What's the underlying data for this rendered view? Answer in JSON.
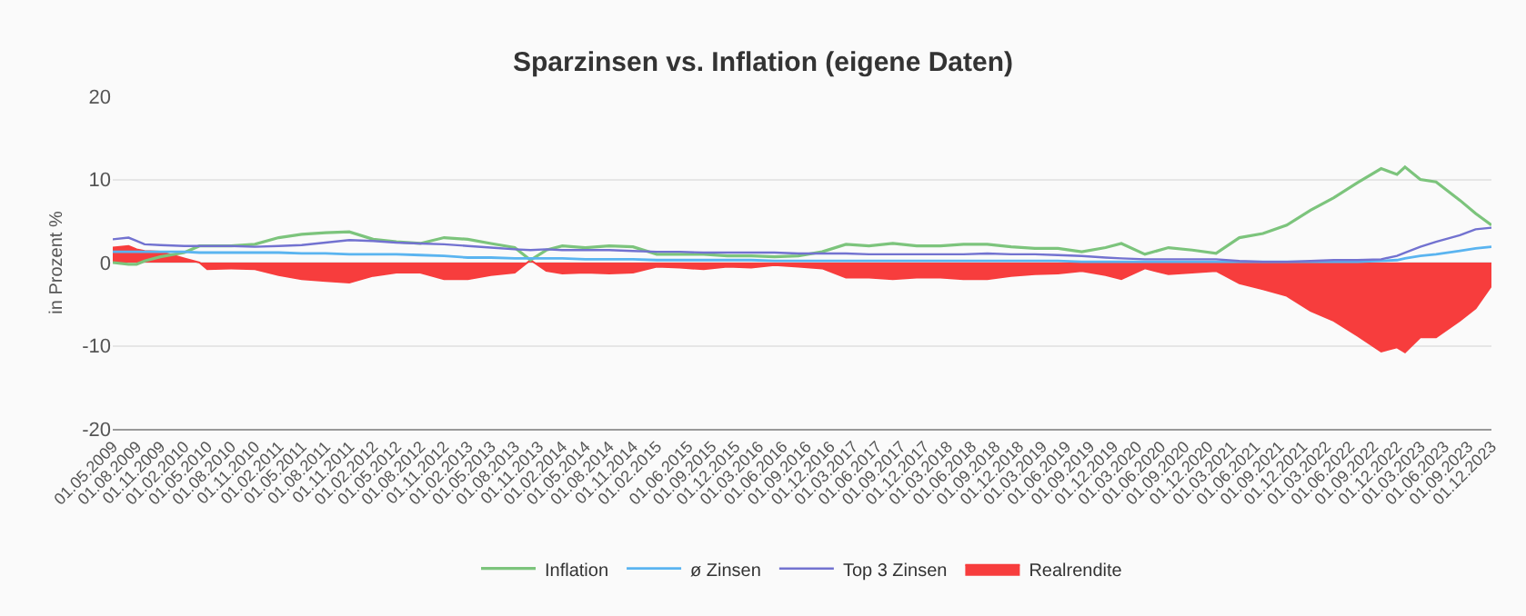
{
  "chart_data": {
    "type": "line",
    "title": "Sparzinsen vs. Inflation (eigene Daten)",
    "ylabel": "in Prozent %",
    "x": [
      "2009-05",
      "2009-07",
      "2009-08",
      "2009-09",
      "2009-11",
      "2010-02",
      "2010-04",
      "2010-05",
      "2010-08",
      "2010-11",
      "2011-02",
      "2011-05",
      "2011-08",
      "2011-11",
      "2012-02",
      "2012-05",
      "2012-08",
      "2012-11",
      "2013-02",
      "2013-05",
      "2013-08",
      "2013-10",
      "2013-12",
      "2014-02",
      "2014-05",
      "2014-08",
      "2014-11",
      "2015-02",
      "2015-05",
      "2015-08",
      "2015-11",
      "2016-02",
      "2016-05",
      "2016-08",
      "2016-11",
      "2017-02",
      "2017-05",
      "2017-08",
      "2017-11",
      "2018-02",
      "2018-05",
      "2018-08",
      "2018-11",
      "2019-02",
      "2019-05",
      "2019-08",
      "2019-11",
      "2020-01",
      "2020-04",
      "2020-07",
      "2020-10",
      "2021-01",
      "2021-04",
      "2021-07",
      "2021-10",
      "2022-01",
      "2022-04",
      "2022-07",
      "2022-10",
      "2022-12",
      "2023-01",
      "2023-03",
      "2023-05",
      "2023-08",
      "2023-10",
      "2023-12"
    ],
    "series": [
      {
        "name": "Inflation",
        "color": "#7cc47c",
        "values": [
          0,
          -0.2,
          -0.2,
          0.2,
          0.7,
          1.2,
          2.0,
          2.0,
          2.0,
          2.2,
          3.0,
          3.4,
          3.6,
          3.7,
          2.8,
          2.5,
          2.3,
          3.0,
          2.8,
          2.3,
          1.8,
          0.3,
          1.5,
          2.0,
          1.8,
          2.0,
          1.9,
          1.0,
          1.0,
          1.0,
          0.8,
          0.8,
          0.7,
          0.8,
          1.3,
          2.2,
          2.0,
          2.3,
          2.0,
          2.0,
          2.2,
          2.2,
          1.9,
          1.7,
          1.7,
          1.3,
          1.8,
          2.3,
          1.0,
          1.8,
          1.5,
          1.1,
          3.0,
          3.5,
          4.5,
          6.3,
          7.8,
          9.6,
          11.3,
          10.6,
          11.5,
          10.0,
          9.7,
          7.5,
          5.9,
          4.5
        ]
      },
      {
        "name": "ø Zinsen",
        "color": "#5ab4f0",
        "values": [
          1.3,
          1.3,
          1.3,
          1.3,
          1.3,
          1.3,
          1.2,
          1.2,
          1.2,
          1.2,
          1.2,
          1.1,
          1.1,
          1.0,
          1.0,
          1.0,
          0.9,
          0.8,
          0.6,
          0.6,
          0.5,
          0.5,
          0.5,
          0.5,
          0.4,
          0.4,
          0.4,
          0.3,
          0.3,
          0.3,
          0.3,
          0.3,
          0.2,
          0.2,
          0.2,
          0.2,
          0.2,
          0.2,
          0.2,
          0.2,
          0.2,
          0.2,
          0.2,
          0.2,
          0.2,
          0.1,
          0.1,
          0.1,
          0.1,
          0.1,
          0.1,
          0.1,
          0.1,
          0.1,
          0.1,
          0.1,
          0.1,
          0.1,
          0.2,
          0.3,
          0.5,
          0.8,
          1.0,
          1.4,
          1.7,
          1.9
        ]
      },
      {
        "name": "Top 3 Zinsen",
        "color": "#7272d0",
        "values": [
          2.8,
          3.0,
          2.6,
          2.2,
          2.1,
          2.0,
          2.0,
          2.0,
          2.0,
          1.9,
          2.0,
          2.1,
          2.4,
          2.7,
          2.6,
          2.4,
          2.3,
          2.2,
          2.0,
          1.8,
          1.6,
          1.5,
          1.6,
          1.5,
          1.5,
          1.5,
          1.4,
          1.3,
          1.3,
          1.2,
          1.2,
          1.2,
          1.2,
          1.1,
          1.1,
          1.1,
          1.0,
          1.0,
          1.0,
          1.0,
          1.0,
          1.1,
          1.0,
          1.0,
          0.9,
          0.8,
          0.6,
          0.5,
          0.4,
          0.4,
          0.4,
          0.4,
          0.2,
          0.1,
          0.1,
          0.2,
          0.3,
          0.3,
          0.4,
          0.8,
          1.2,
          1.9,
          2.5,
          3.3,
          4.0,
          4.2
        ]
      },
      {
        "name": "Realrendite",
        "type": "area",
        "color": "#f73d3d",
        "values": [
          1.8,
          2.0,
          1.6,
          1.4,
          1.3,
          0.5,
          0.0,
          -0.8,
          -0.7,
          -0.8,
          -1.5,
          -2.0,
          -2.2,
          -2.4,
          -1.6,
          -1.2,
          -1.2,
          -2.0,
          -2.0,
          -1.5,
          -1.2,
          0.3,
          -1.0,
          -1.3,
          -1.2,
          -1.3,
          -1.2,
          -0.5,
          -0.6,
          -0.8,
          -0.5,
          -0.6,
          -0.3,
          -0.5,
          -0.7,
          -1.8,
          -1.8,
          -2.0,
          -1.8,
          -1.8,
          -2.0,
          -2.0,
          -1.6,
          -1.4,
          -1.3,
          -1.0,
          -1.5,
          -2.0,
          -0.7,
          -1.4,
          -1.2,
          -1.0,
          -2.5,
          -3.2,
          -4.0,
          -5.8,
          -7.0,
          -8.8,
          -10.7,
          -10.2,
          -10.8,
          -9.0,
          -9.0,
          -7.0,
          -5.5,
          -2.8
        ]
      }
    ],
    "xlim": [
      "2009-05",
      "2023-12"
    ],
    "xticks": [
      {
        "value": "2009-05",
        "label": "01.05.2009"
      },
      {
        "value": "2009-08",
        "label": "01.08.2009"
      },
      {
        "value": "2009-11",
        "label": "01.11.2009"
      },
      {
        "value": "2010-02",
        "label": "01.02.2010"
      },
      {
        "value": "2010-05",
        "label": "01.05.2010"
      },
      {
        "value": "2010-08",
        "label": "01.08.2010"
      },
      {
        "value": "2010-11",
        "label": "01.11.2010"
      },
      {
        "value": "2011-02",
        "label": "01.02.2011"
      },
      {
        "value": "2011-05",
        "label": "01.05.2011"
      },
      {
        "value": "2011-08",
        "label": "01.08.2011"
      },
      {
        "value": "2011-11",
        "label": "01.11.2011"
      },
      {
        "value": "2012-02",
        "label": "01.02.2012"
      },
      {
        "value": "2012-05",
        "label": "01.05.2012"
      },
      {
        "value": "2012-08",
        "label": "01.08.2012"
      },
      {
        "value": "2012-11",
        "label": "01.11.2012"
      },
      {
        "value": "2013-02",
        "label": "01.02.2013"
      },
      {
        "value": "2013-05",
        "label": "01.05.2013"
      },
      {
        "value": "2013-08",
        "label": "01.08.2013"
      },
      {
        "value": "2013-11",
        "label": "01.11.2013"
      },
      {
        "value": "2014-02",
        "label": "01.02.2014"
      },
      {
        "value": "2014-05",
        "label": "01.05.2014"
      },
      {
        "value": "2014-08",
        "label": "01.08.2014"
      },
      {
        "value": "2014-11",
        "label": "01.11.2014"
      },
      {
        "value": "2015-02",
        "label": "01.02.2015"
      },
      {
        "value": "2015-06",
        "label": "01.06.2015"
      },
      {
        "value": "2015-09",
        "label": "01.09.2015"
      },
      {
        "value": "2015-12",
        "label": "01.12.2015"
      },
      {
        "value": "2016-03",
        "label": "01.03.2016"
      },
      {
        "value": "2016-06",
        "label": "01.06.2016"
      },
      {
        "value": "2016-09",
        "label": "01.09.2016"
      },
      {
        "value": "2016-12",
        "label": "01.12.2016"
      },
      {
        "value": "2017-03",
        "label": "01.03.2017"
      },
      {
        "value": "2017-06",
        "label": "01.06.2017"
      },
      {
        "value": "2017-09",
        "label": "01.09.2017"
      },
      {
        "value": "2017-12",
        "label": "01.12.2017"
      },
      {
        "value": "2018-03",
        "label": "01.03.2018"
      },
      {
        "value": "2018-06",
        "label": "01.06.2018"
      },
      {
        "value": "2018-09",
        "label": "01.09.2018"
      },
      {
        "value": "2018-12",
        "label": "01.12.2018"
      },
      {
        "value": "2019-03",
        "label": "01.03.2019"
      },
      {
        "value": "2019-06",
        "label": "01.06.2019"
      },
      {
        "value": "2019-09",
        "label": "01.09.2019"
      },
      {
        "value": "2019-12",
        "label": "01.12.2019"
      },
      {
        "value": "2020-03",
        "label": "01.03.2020"
      },
      {
        "value": "2020-06",
        "label": "01.06.2020"
      },
      {
        "value": "2020-09",
        "label": "01.09.2020"
      },
      {
        "value": "2020-12",
        "label": "01.12.2020"
      },
      {
        "value": "2021-03",
        "label": "01.03.2021"
      },
      {
        "value": "2021-06",
        "label": "01.06.2021"
      },
      {
        "value": "2021-09",
        "label": "01.09.2021"
      },
      {
        "value": "2021-12",
        "label": "01.12.2021"
      },
      {
        "value": "2022-03",
        "label": "01.03.2022"
      },
      {
        "value": "2022-06",
        "label": "01.06.2022"
      },
      {
        "value": "2022-09",
        "label": "01.09.2022"
      },
      {
        "value": "2022-12",
        "label": "01.12.2022"
      },
      {
        "value": "2023-03",
        "label": "01.03.2023"
      },
      {
        "value": "2023-06",
        "label": "01.06.2023"
      },
      {
        "value": "2023-09",
        "label": "01.09.2023"
      },
      {
        "value": "2023-12",
        "label": "01.12.2023"
      }
    ],
    "ylim": [
      -20,
      20
    ],
    "yticks": [
      -20,
      -10,
      0,
      10,
      20
    ],
    "grid": "y",
    "legend": "bottom",
    "marker": "none",
    "line_style": "solid"
  }
}
